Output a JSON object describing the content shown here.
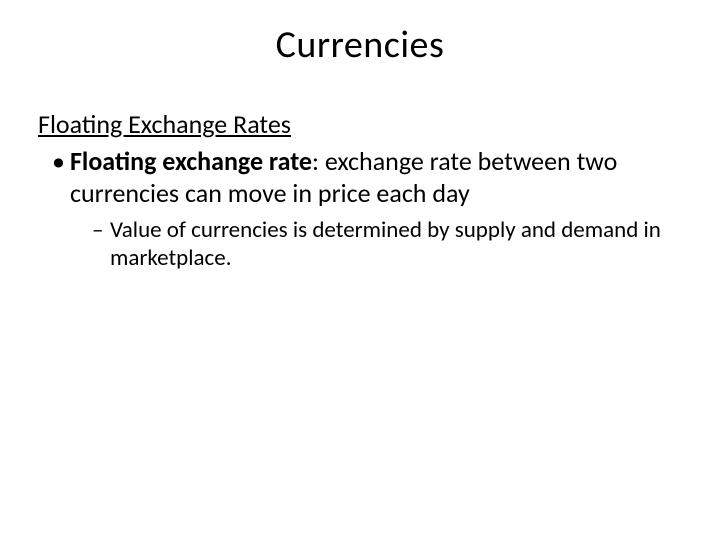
{
  "slide": {
    "title": "Currencies",
    "section_heading": "Floating Exchange Rates",
    "bullet1": {
      "marker": "•",
      "term": "Floating exchange rate",
      "rest": ": exchange rate between two currencies can move in price each day"
    },
    "sub1": {
      "marker": "–",
      "text": "Value of currencies is determined by supply and demand in marketplace."
    },
    "colors": {
      "background": "#ffffff",
      "text": "#000000"
    },
    "fonts": {
      "title_size_pt": 38,
      "body_size_pt": 26,
      "sub_size_pt": 23,
      "family": "Calibri"
    }
  }
}
